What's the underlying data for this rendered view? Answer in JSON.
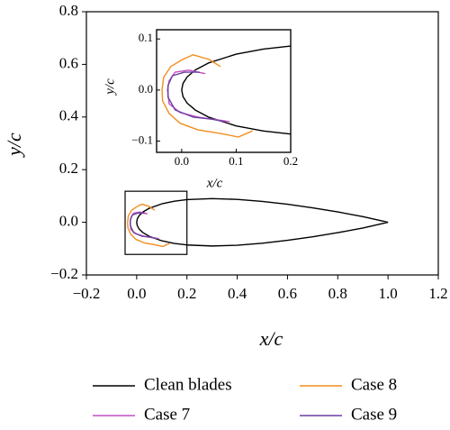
{
  "chart_data": [
    {
      "type": "line",
      "xlabel": "x/c",
      "ylabel": "y/c",
      "xlim": [
        -0.2,
        1.2
      ],
      "ylim": [
        -0.2,
        0.8
      ],
      "xticks": [
        {
          "value": -0.2,
          "label": "−0.2"
        },
        {
          "value": 0,
          "label": "0.0"
        },
        0.2,
        0.4,
        0.6,
        0.8,
        {
          "value": 1,
          "label": "1.0"
        },
        1.2
      ],
      "yticks": [
        {
          "value": -0.2,
          "label": "−0.2"
        },
        {
          "value": 0,
          "label": "0.0"
        },
        0.2,
        0.4,
        0.6,
        0.8
      ],
      "legend": "bottom",
      "series": [
        {
          "name": "Clean blades",
          "color": "#000000",
          "x": [
            1.0,
            0.9,
            0.8,
            0.7,
            0.6,
            0.5,
            0.4,
            0.3,
            0.2,
            0.15,
            0.1,
            0.05,
            0.025,
            0.01,
            0.0025,
            0,
            0.0025,
            0.01,
            0.025,
            0.05,
            0.1,
            0.15,
            0.2,
            0.3,
            0.4,
            0.5,
            0.6,
            0.7,
            0.8,
            0.9,
            1.0
          ],
          "values": [
            0,
            0.0217,
            0.0394,
            0.055,
            0.0685,
            0.0794,
            0.0871,
            0.09,
            0.0861,
            0.0802,
            0.0702,
            0.0533,
            0.0392,
            0.0256,
            0.0131,
            0,
            -0.0131,
            -0.0256,
            -0.0392,
            -0.0533,
            -0.0702,
            -0.0802,
            -0.0861,
            -0.09,
            -0.0871,
            -0.0794,
            -0.0685,
            -0.055,
            -0.0394,
            -0.0217,
            0
          ]
        },
        {
          "name": "Case 7",
          "color": "#c04fc4",
          "x": [
            0.043,
            0.013,
            -0.012,
            -0.023,
            -0.026,
            -0.023,
            -0.003,
            0.03,
            0.063,
            0.088
          ],
          "values": [
            0.032,
            0.039,
            0.035,
            0.018,
            0,
            -0.027,
            -0.044,
            -0.053,
            -0.058,
            -0.062
          ]
        },
        {
          "name": "Case 8",
          "color": "#f28e1c",
          "x": [
            0.071,
            0.05,
            0.021,
            0.002,
            -0.02,
            -0.033,
            -0.036,
            -0.035,
            -0.023,
            -0.003,
            0.03,
            0.071,
            0.104,
            0.13
          ],
          "values": [
            0.046,
            0.06,
            0.069,
            0.06,
            0.046,
            0.025,
            0,
            -0.021,
            -0.046,
            -0.065,
            -0.078,
            -0.085,
            -0.092,
            -0.08
          ]
        },
        {
          "name": "Case 9",
          "color": "#6a3fa0",
          "x": [
            0.033,
            0.005,
            -0.017,
            -0.025,
            -0.025,
            -0.012,
            0.021,
            0.055,
            0.079
          ],
          "values": [
            0.035,
            0.035,
            0.028,
            0.009,
            -0.014,
            -0.039,
            -0.053,
            -0.057,
            -0.062
          ]
        }
      ]
    },
    {
      "type": "line",
      "xlabel": "x/c",
      "ylabel": "y/c",
      "xlim": [
        -0.046,
        0.2
      ],
      "ylim": [
        -0.122,
        0.118
      ],
      "xticks": [
        {
          "value": 0,
          "label": "0.0"
        },
        0.1,
        0.2
      ],
      "yticks": [
        {
          "value": -0.1,
          "label": "−0.1"
        },
        {
          "value": 0,
          "label": "0.0"
        },
        0.1
      ]
    }
  ]
}
